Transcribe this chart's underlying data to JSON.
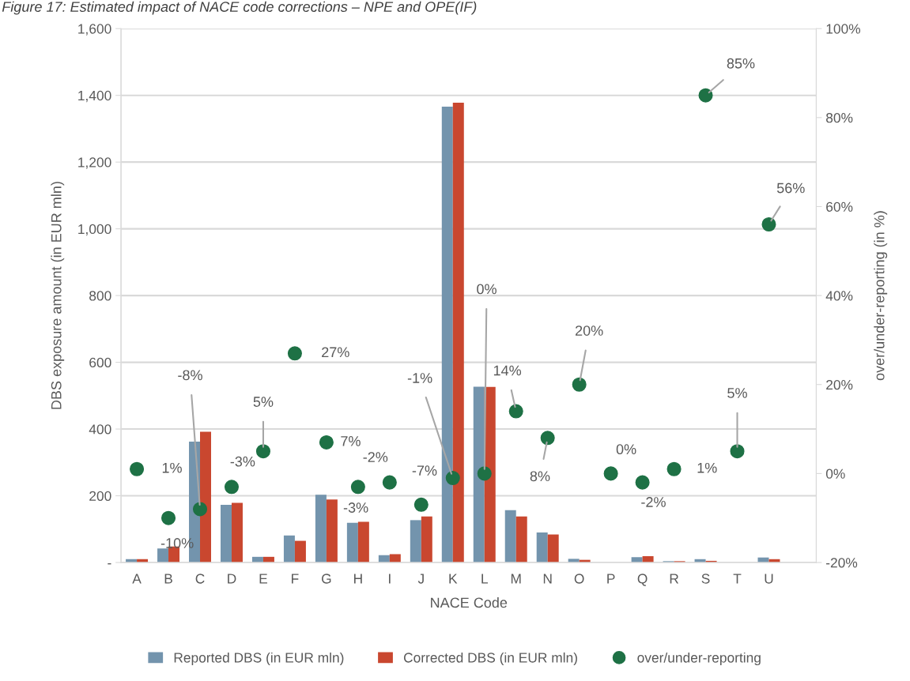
{
  "chart_data": {
    "type": "bar",
    "title": "Figure 17: Estimated impact of NACE code corrections – NPE and OPE(IF)",
    "xlabel": "NACE Code",
    "ylabel": "DBS exposure amount (in EUR mln)",
    "y2label": "over/under-reporting (in %)",
    "categories": [
      "A",
      "B",
      "C",
      "D",
      "E",
      "F",
      "G",
      "H",
      "I",
      "J",
      "K",
      "L",
      "M",
      "N",
      "O",
      "P",
      "Q",
      "R",
      "S",
      "T",
      "U",
      null
    ],
    "series": [
      {
        "name": "Reported DBS (in EUR mln)",
        "color": "#7394ad",
        "values": [
          10,
          42,
          362,
          173,
          17,
          81,
          203,
          119,
          22,
          127,
          1366,
          527,
          157,
          90,
          11,
          0,
          16,
          4,
          10,
          0,
          15,
          null
        ]
      },
      {
        "name": "Corrected DBS (in EUR mln)",
        "color": "#c9472f",
        "values": [
          10,
          48,
          392,
          179,
          17,
          65,
          189,
          122,
          25,
          138,
          1378,
          526,
          138,
          84,
          8,
          0,
          19,
          4,
          5,
          0,
          10,
          null
        ]
      },
      {
        "name": "over/under-reporting",
        "type": "scatter",
        "axis": "y2",
        "color": "#1e7145",
        "marker": "circle",
        "value_labels": [
          "1%",
          "-10%",
          "-8%",
          "-3%",
          "5%",
          "27%",
          "7%",
          "-3%",
          "-2%",
          "-7%",
          "-1%",
          "0%",
          "14%",
          "8%",
          "20%",
          "0%",
          "-2%",
          "1%",
          "85%",
          "5%",
          "56%",
          null
        ],
        "values": [
          1,
          -10,
          -8,
          -3,
          5,
          27,
          7,
          -3,
          -2,
          -7,
          -1,
          0,
          14,
          8,
          20,
          0,
          -2,
          1,
          85,
          5,
          56,
          null
        ]
      }
    ],
    "ylim": [
      0,
      1600
    ],
    "yticks": [
      {
        "value": 0,
        "label": "-"
      },
      {
        "value": 200,
        "label": "200"
      },
      {
        "value": 400,
        "label": "400"
      },
      {
        "value": 600,
        "label": "600"
      },
      {
        "value": 800,
        "label": "800"
      },
      {
        "value": 1000,
        "label": "1,000"
      },
      {
        "value": 1200,
        "label": "1,200"
      },
      {
        "value": 1400,
        "label": "1,400"
      },
      {
        "value": 1600,
        "label": "1,600"
      }
    ],
    "y2lim": [
      -20,
      100
    ],
    "y2ticks": [
      {
        "value": -20,
        "label": "-20%"
      },
      {
        "value": 0,
        "label": "0%"
      },
      {
        "value": 20,
        "label": "20%"
      },
      {
        "value": 40,
        "label": "40%"
      },
      {
        "value": 60,
        "label": "60%"
      },
      {
        "value": 80,
        "label": "80%"
      },
      {
        "value": 100,
        "label": "100%"
      }
    ],
    "grid": "y",
    "legend": "bottom"
  }
}
